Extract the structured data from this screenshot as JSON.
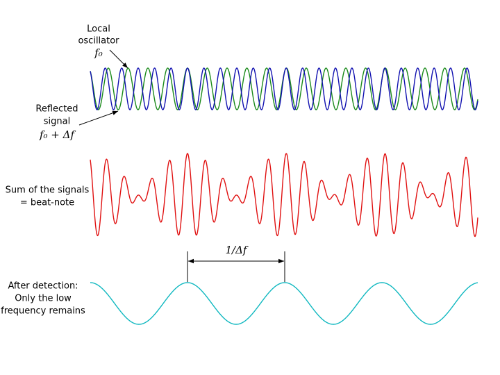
{
  "labels": {
    "local_oscillator": {
      "lines": [
        "Local",
        "oscillator"
      ],
      "formula": "f₀"
    },
    "reflected_signal": {
      "lines": [
        "Reflected",
        "signal"
      ],
      "formula": "f₀ + Δf"
    },
    "sum": {
      "lines": [
        "Sum of the signals",
        "= beat-note"
      ]
    },
    "detection": {
      "lines": [
        "After detection:",
        "Only the low",
        "frequency remains"
      ]
    },
    "period": "1/Δf"
  }
}
